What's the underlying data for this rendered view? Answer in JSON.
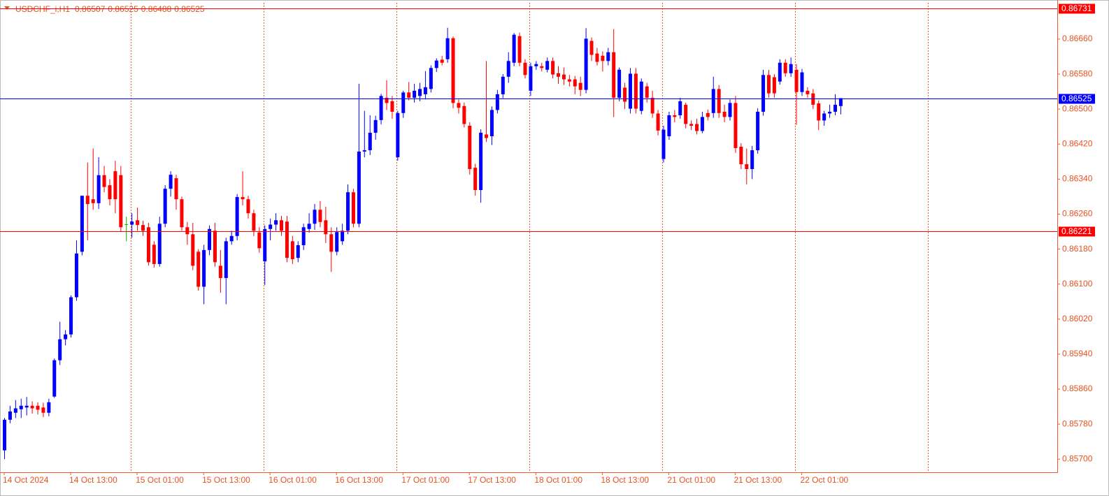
{
  "chart_data": {
    "type": "candlestick",
    "header": {
      "symbol": "USDCHF_i,H1",
      "values": [
        0.86507,
        0.86525,
        0.86488,
        0.86525
      ]
    },
    "up_color": "#0000ff",
    "down_color": "#ff0000",
    "doji_color": "#00b000",
    "ylim": [
      0.8567,
      0.86743
    ],
    "yticks": [
      {
        "value": 0.857,
        "label": "0.85700"
      },
      {
        "value": 0.8578,
        "label": "0.85780"
      },
      {
        "value": 0.8586,
        "label": "0.85860"
      },
      {
        "value": 0.8594,
        "label": "0.85940"
      },
      {
        "value": 0.8602,
        "label": "0.86020"
      },
      {
        "value": 0.861,
        "label": "0.86100"
      },
      {
        "value": 0.8618,
        "label": "0.86180"
      },
      {
        "value": 0.8626,
        "label": "0.86260"
      },
      {
        "value": 0.8634,
        "label": "0.86340"
      },
      {
        "value": 0.8642,
        "label": "0.86420"
      },
      {
        "value": 0.865,
        "label": "0.86500"
      },
      {
        "value": 0.8658,
        "label": "0.86580"
      },
      {
        "value": 0.8666,
        "label": "0.86660"
      }
    ],
    "lines": [
      {
        "value": 0.86731,
        "color": "#ff0000"
      },
      {
        "value": 0.86525,
        "color": "#0000ff"
      },
      {
        "value": 0.86221,
        "color": "#ff0000"
      }
    ],
    "categories": [
      "14 Oct 2024",
      null,
      null,
      null,
      null,
      null,
      null,
      null,
      null,
      null,
      null,
      null,
      "14 Oct 13:00",
      null,
      null,
      null,
      null,
      null,
      null,
      null,
      null,
      null,
      null,
      null,
      "15 Oct 01:00",
      null,
      null,
      null,
      null,
      null,
      null,
      null,
      null,
      null,
      null,
      null,
      "15 Oct 13:00",
      null,
      null,
      null,
      null,
      null,
      null,
      null,
      null,
      null,
      null,
      null,
      "16 Oct 01:00",
      null,
      null,
      null,
      null,
      null,
      null,
      null,
      null,
      null,
      null,
      null,
      "16 Oct 13:00",
      null,
      null,
      null,
      null,
      null,
      null,
      null,
      null,
      null,
      null,
      null,
      "17 Oct 01:00",
      null,
      null,
      null,
      null,
      null,
      null,
      null,
      null,
      null,
      null,
      null,
      "17 Oct 13:00",
      null,
      null,
      null,
      null,
      null,
      null,
      null,
      null,
      null,
      null,
      null,
      "18 Oct 01:00",
      null,
      null,
      null,
      null,
      null,
      null,
      null,
      null,
      null,
      null,
      null,
      "18 Oct 13:00",
      null,
      null,
      null,
      null,
      null,
      null,
      null,
      null,
      null,
      null,
      null,
      "21 Oct 01:00",
      null,
      null,
      null,
      null,
      null,
      null,
      null,
      null,
      null,
      null,
      null,
      "21 Oct 13:00",
      null,
      null,
      null,
      null,
      null,
      null,
      null,
      null,
      null,
      null,
      null,
      "22 Oct 01:00",
      null,
      null,
      null,
      null,
      null,
      null,
      null
    ],
    "ohlc": [
      [
        0.8572,
        0.85794,
        0.857,
        0.8579
      ],
      [
        0.8579,
        0.85822,
        0.85782,
        0.85809
      ],
      [
        0.85806,
        0.85835,
        0.85794,
        0.85816
      ],
      [
        0.85814,
        0.85838,
        0.85794,
        0.85822
      ],
      [
        0.85818,
        0.85842,
        0.858,
        0.85822
      ],
      [
        0.85822,
        0.85832,
        0.85804,
        0.85816
      ],
      [
        0.85822,
        0.8583,
        0.85802,
        0.85813
      ],
      [
        0.85818,
        0.85829,
        0.85796,
        0.85806
      ],
      [
        0.85806,
        0.85838,
        0.85798,
        0.8583
      ],
      [
        0.85843,
        0.8593,
        0.8584,
        0.85926
      ],
      [
        0.85926,
        0.86014,
        0.85915,
        0.85974
      ],
      [
        0.85974,
        0.85995,
        0.8596,
        0.85985
      ],
      [
        0.85985,
        0.86074,
        0.85978,
        0.8607
      ],
      [
        0.8607,
        0.862,
        0.86062,
        0.8617
      ],
      [
        0.86174,
        0.86302,
        0.86166,
        0.86302
      ],
      [
        0.86302,
        0.86378,
        0.862,
        0.86283
      ],
      [
        0.86294,
        0.8641,
        0.8627,
        0.86285
      ],
      [
        0.86285,
        0.8639,
        0.86272,
        0.86349
      ],
      [
        0.86349,
        0.8637,
        0.8631,
        0.86322
      ],
      [
        0.86326,
        0.8634,
        0.8628,
        0.86294
      ],
      [
        0.86358,
        0.86382,
        0.86262,
        0.86294
      ],
      [
        0.86349,
        0.8637,
        0.8622,
        0.8623
      ],
      [
        0.86237,
        0.86254,
        0.86198,
        0.86237
      ],
      [
        0.86236,
        0.86262,
        0.86206,
        0.86243
      ],
      [
        0.86246,
        0.86275,
        0.86222,
        0.86235
      ],
      [
        0.86235,
        0.86245,
        0.8621,
        0.86222
      ],
      [
        0.8623,
        0.8624,
        0.86142,
        0.8615
      ],
      [
        0.8619,
        0.86198,
        0.86138,
        0.86146
      ],
      [
        0.86146,
        0.86254,
        0.8614,
        0.86238
      ],
      [
        0.86238,
        0.86326,
        0.8623,
        0.86318
      ],
      [
        0.86318,
        0.86358,
        0.863,
        0.8635
      ],
      [
        0.86342,
        0.8635,
        0.8627,
        0.86294
      ],
      [
        0.86294,
        0.863,
        0.86222,
        0.8623
      ],
      [
        0.8623,
        0.86242,
        0.8619,
        0.86214
      ],
      [
        0.86214,
        0.8624,
        0.86132,
        0.86142
      ],
      [
        0.86174,
        0.8618,
        0.86085,
        0.86094
      ],
      [
        0.86094,
        0.8619,
        0.86054,
        0.86178
      ],
      [
        0.86178,
        0.86234,
        0.86166,
        0.86226
      ],
      [
        0.86222,
        0.8624,
        0.8614,
        0.8615
      ],
      [
        0.86142,
        0.86178,
        0.8608,
        0.86114
      ],
      [
        0.86114,
        0.86206,
        0.86054,
        0.86198
      ],
      [
        0.86198,
        0.86222,
        0.8619,
        0.8621
      ],
      [
        0.8621,
        0.86306,
        0.862,
        0.86299
      ],
      [
        0.86299,
        0.86358,
        0.8628,
        0.86294
      ],
      [
        0.86294,
        0.86302,
        0.8625,
        0.86262
      ],
      [
        0.86262,
        0.8627,
        0.8621,
        0.86222
      ],
      [
        0.86218,
        0.8623,
        0.86172,
        0.86182
      ],
      [
        0.86152,
        0.86234,
        0.86098,
        0.86226
      ],
      [
        0.86226,
        0.8625,
        0.862,
        0.86236
      ],
      [
        0.86236,
        0.86262,
        0.86222,
        0.86246
      ],
      [
        0.86246,
        0.86256,
        0.8621,
        0.86222
      ],
      [
        0.86243,
        0.86256,
        0.8615,
        0.8616
      ],
      [
        0.86198,
        0.8621,
        0.86146,
        0.86157
      ],
      [
        0.8616,
        0.86198,
        0.8615,
        0.86189
      ],
      [
        0.86189,
        0.86238,
        0.86178,
        0.8623
      ],
      [
        0.86226,
        0.86262,
        0.86218,
        0.86238
      ],
      [
        0.86238,
        0.86283,
        0.86224,
        0.8627
      ],
      [
        0.8627,
        0.8629,
        0.8623,
        0.86242
      ],
      [
        0.86246,
        0.86277,
        0.86194,
        0.86214
      ],
      [
        0.86214,
        0.8623,
        0.86128,
        0.86174
      ],
      [
        0.86174,
        0.8623,
        0.86166,
        0.86219
      ],
      [
        0.86198,
        0.86238,
        0.8619,
        0.86222
      ],
      [
        0.86222,
        0.86328,
        0.86214,
        0.8631
      ],
      [
        0.8631,
        0.86318,
        0.8623,
        0.86238
      ],
      [
        0.86238,
        0.86558,
        0.8623,
        0.86403
      ],
      [
        0.86403,
        0.86496,
        0.8639,
        0.86406
      ],
      [
        0.86406,
        0.86486,
        0.86395,
        0.86446
      ],
      [
        0.86446,
        0.86485,
        0.8643,
        0.86475
      ],
      [
        0.86475,
        0.86535,
        0.86465,
        0.8653
      ],
      [
        0.86526,
        0.86566,
        0.86498,
        0.86514
      ],
      [
        0.86518,
        0.8653,
        0.86478,
        0.86494
      ],
      [
        0.8639,
        0.86496,
        0.86382,
        0.86491
      ],
      [
        0.86491,
        0.86542,
        0.8648,
        0.86538
      ],
      [
        0.86538,
        0.86562,
        0.8652,
        0.86526
      ],
      [
        0.86526,
        0.86558,
        0.86515,
        0.86542
      ],
      [
        0.8653,
        0.8656,
        0.86518,
        0.86546
      ],
      [
        0.86534,
        0.86587,
        0.86522,
        0.8655
      ],
      [
        0.86546,
        0.866,
        0.86538,
        0.86594
      ],
      [
        0.86594,
        0.86616,
        0.86585,
        0.86611
      ],
      [
        0.86613,
        0.86622,
        0.866,
        0.86606
      ],
      [
        0.86614,
        0.86686,
        0.86606,
        0.86662
      ],
      [
        0.86662,
        0.86666,
        0.86502,
        0.86514
      ],
      [
        0.86514,
        0.86522,
        0.8649,
        0.86503
      ],
      [
        0.86507,
        0.86515,
        0.86458,
        0.86466
      ],
      [
        0.86462,
        0.8647,
        0.8635,
        0.86363
      ],
      [
        0.86366,
        0.86375,
        0.86302,
        0.86315
      ],
      [
        0.86315,
        0.86454,
        0.86286,
        0.86446
      ],
      [
        0.86442,
        0.8661,
        0.86425,
        0.86434
      ],
      [
        0.86438,
        0.86506,
        0.86418,
        0.86498
      ],
      [
        0.86498,
        0.86544,
        0.8649,
        0.86534
      ],
      [
        0.86534,
        0.8658,
        0.86525,
        0.86574
      ],
      [
        0.86574,
        0.8663,
        0.8656,
        0.8661
      ],
      [
        0.86606,
        0.86674,
        0.86598,
        0.8667
      ],
      [
        0.86667,
        0.86675,
        0.86598,
        0.86606
      ],
      [
        0.86606,
        0.86614,
        0.8657,
        0.86578
      ],
      [
        0.86542,
        0.86606,
        0.8653,
        0.86598
      ],
      [
        0.86598,
        0.8661,
        0.8659,
        0.86603
      ],
      [
        0.86598,
        0.86606,
        0.86586,
        0.86594
      ],
      [
        0.8659,
        0.86618,
        0.86584,
        0.8661
      ],
      [
        0.8661,
        0.86618,
        0.8657,
        0.86579
      ],
      [
        0.86582,
        0.86598,
        0.86558,
        0.86574
      ],
      [
        0.86579,
        0.86595,
        0.86555,
        0.86568
      ],
      [
        0.86568,
        0.86578,
        0.86552,
        0.86563
      ],
      [
        0.86568,
        0.86576,
        0.86534,
        0.86552
      ],
      [
        0.8656,
        0.86574,
        0.8653,
        0.86544
      ],
      [
        0.86544,
        0.86685,
        0.86536,
        0.86661
      ],
      [
        0.86656,
        0.86664,
        0.8661,
        0.86624
      ],
      [
        0.86627,
        0.8664,
        0.866,
        0.86608
      ],
      [
        0.86622,
        0.86632,
        0.86586,
        0.8661
      ],
      [
        0.8661,
        0.8664,
        0.866,
        0.8663
      ],
      [
        0.8663,
        0.86683,
        0.86482,
        0.86526
      ],
      [
        0.86526,
        0.86595,
        0.86518,
        0.8659
      ],
      [
        0.86549,
        0.8656,
        0.865,
        0.86517
      ],
      [
        0.86501,
        0.86594,
        0.8649,
        0.86581
      ],
      [
        0.86581,
        0.86594,
        0.8649,
        0.86501
      ],
      [
        0.86496,
        0.8657,
        0.86488,
        0.86563
      ],
      [
        0.86552,
        0.8656,
        0.86515,
        0.86526
      ],
      [
        0.86526,
        0.86542,
        0.8648,
        0.8649
      ],
      [
        0.8649,
        0.86498,
        0.8644,
        0.86451
      ],
      [
        0.86386,
        0.86462,
        0.86378,
        0.86453
      ],
      [
        0.86438,
        0.86494,
        0.8643,
        0.86486
      ],
      [
        0.86486,
        0.86498,
        0.8647,
        0.86482
      ],
      [
        0.86486,
        0.86526,
        0.86478,
        0.86518
      ],
      [
        0.8651,
        0.86515,
        0.86456,
        0.86466
      ],
      [
        0.86466,
        0.86474,
        0.86452,
        0.86462
      ],
      [
        0.86466,
        0.86478,
        0.86442,
        0.8645
      ],
      [
        0.8645,
        0.86494,
        0.86445,
        0.86482
      ],
      [
        0.86491,
        0.86499,
        0.86474,
        0.86482
      ],
      [
        0.86491,
        0.86574,
        0.8648,
        0.86546
      ],
      [
        0.86546,
        0.86555,
        0.8648,
        0.86491
      ],
      [
        0.86494,
        0.8651,
        0.8647,
        0.86482
      ],
      [
        0.86482,
        0.86522,
        0.86474,
        0.86514
      ],
      [
        0.86514,
        0.8653,
        0.864,
        0.86411
      ],
      [
        0.86414,
        0.86422,
        0.86363,
        0.86374
      ],
      [
        0.86374,
        0.8641,
        0.86328,
        0.86363
      ],
      [
        0.86363,
        0.86416,
        0.8634,
        0.86406
      ],
      [
        0.86406,
        0.86502,
        0.86398,
        0.86494
      ],
      [
        0.86494,
        0.8659,
        0.86485,
        0.86578
      ],
      [
        0.86578,
        0.8659,
        0.86526,
        0.86536
      ],
      [
        0.86573,
        0.8658,
        0.86526,
        0.86536
      ],
      [
        0.86563,
        0.86614,
        0.86556,
        0.86606
      ],
      [
        0.86606,
        0.86614,
        0.86574,
        0.86582
      ],
      [
        0.86582,
        0.86618,
        0.86574,
        0.86603
      ],
      [
        0.8659,
        0.86603,
        0.86464,
        0.86539
      ],
      [
        0.86539,
        0.86592,
        0.8653,
        0.86584
      ],
      [
        0.86542,
        0.8655,
        0.86526,
        0.86534
      ],
      [
        0.86536,
        0.86546,
        0.865,
        0.8651
      ],
      [
        0.86513,
        0.8652,
        0.86452,
        0.86474
      ],
      [
        0.86474,
        0.86496,
        0.86462,
        0.8649
      ],
      [
        0.8649,
        0.8651,
        0.8648,
        0.86494
      ],
      [
        0.86494,
        0.86534,
        0.86486,
        0.8651
      ],
      [
        0.86507,
        0.86525,
        0.86488,
        0.86525
      ]
    ]
  }
}
